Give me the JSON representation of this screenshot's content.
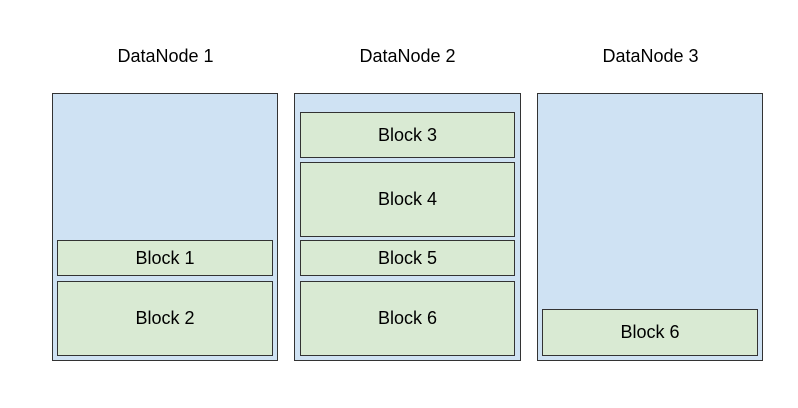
{
  "colors": {
    "node_fill": "#cfe2f3",
    "block_fill": "#d9ead3"
  },
  "nodes": [
    {
      "title": "DataNode 1",
      "blocks": [
        {
          "label": "Block 1"
        },
        {
          "label": "Block 2"
        }
      ]
    },
    {
      "title": "DataNode 2",
      "blocks": [
        {
          "label": "Block 3"
        },
        {
          "label": "Block 4"
        },
        {
          "label": "Block 5"
        },
        {
          "label": "Block 6"
        }
      ]
    },
    {
      "title": "DataNode 3",
      "blocks": [
        {
          "label": "Block 6"
        }
      ]
    }
  ]
}
